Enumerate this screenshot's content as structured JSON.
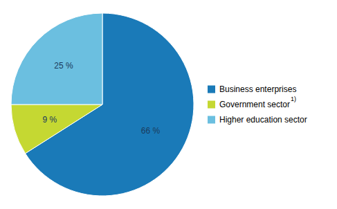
{
  "chart_data": {
    "type": "pie",
    "categories": [
      "Business enterprises",
      "Government sector",
      "Higher education sector"
    ],
    "values": [
      66,
      9,
      25
    ],
    "value_labels": [
      "66 %",
      "9 %",
      "25 %"
    ],
    "data_labels": true,
    "colors": [
      "#1a7ab8",
      "#c5d832",
      "#6bbfe0"
    ],
    "legend": "right",
    "annotations": [
      "1)"
    ]
  }
}
